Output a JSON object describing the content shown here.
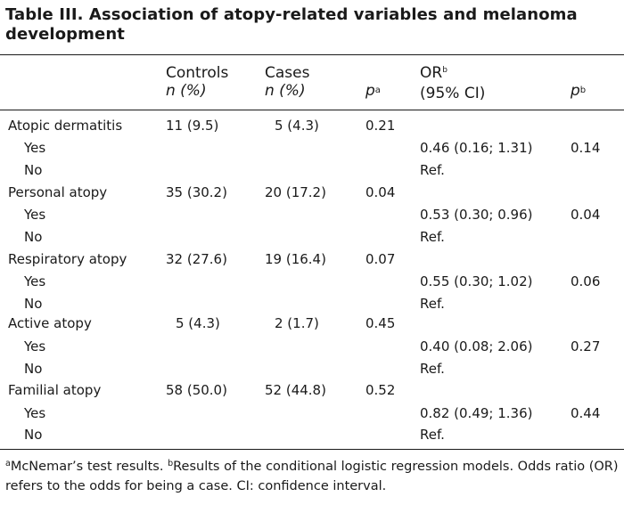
{
  "title": "Table III. Association of atopy-related variables and melanoma development",
  "headers": {
    "controls": "Controls",
    "controls_sub": "n (%)",
    "cases": "Cases",
    "cases_sub": "n (%)",
    "p": "p",
    "p_sup": "a",
    "or": "OR",
    "or_sup": "b",
    "or_sub": "(95% CI)",
    "p2": "p",
    "p2_sup": "b"
  },
  "rows": [
    {
      "label": "Atopic dermatitis",
      "controls": "11 (9.5)",
      "cases": "5 (4.3)",
      "p": "0.21",
      "or": "",
      "p2": ""
    },
    {
      "label": "Yes",
      "controls": "",
      "cases": "",
      "p": "",
      "or": "0.46 (0.16; 1.31)",
      "p2": "0.14"
    },
    {
      "label": "No",
      "controls": "",
      "cases": "",
      "p": "",
      "or": "Ref.",
      "p2": ""
    },
    {
      "label": "Personal atopy",
      "controls": "35 (30.2)",
      "cases": "20 (17.2)",
      "p": "0.04",
      "or": "",
      "p2": ""
    },
    {
      "label": "Yes",
      "controls": "",
      "cases": "",
      "p": "",
      "or": "0.53 (0.30; 0.96)",
      "p2": "0.04"
    },
    {
      "label": "No",
      "controls": "",
      "cases": "",
      "p": "",
      "or": "Ref.",
      "p2": ""
    },
    {
      "label": "Respiratory atopy",
      "controls": "32 (27.6)",
      "cases": "19 (16.4)",
      "p": "0.07",
      "or": "",
      "p2": ""
    },
    {
      "label": "Yes",
      "controls": "",
      "cases": "",
      "p": "",
      "or": "0.55 (0.30; 1.02)",
      "p2": "0.06"
    },
    {
      "label": "No",
      "controls": "",
      "cases": "",
      "p": "",
      "or": "Ref.",
      "p2": ""
    },
    {
      "label": "Active atopy",
      "controls": "5 (4.3)",
      "cases": "2 (1.7)",
      "p": "0.45",
      "or": "",
      "p2": ""
    },
    {
      "label": "Yes",
      "controls": "",
      "cases": "",
      "p": "",
      "or": "0.40 (0.08; 2.06)",
      "p2": "0.27"
    },
    {
      "label": "No",
      "controls": "",
      "cases": "",
      "p": "",
      "or": "Ref.",
      "p2": ""
    },
    {
      "label": "Familial atopy",
      "controls": "58 (50.0)",
      "cases": "52 (44.8)",
      "p": "0.52",
      "or": "",
      "p2": ""
    },
    {
      "label": "Yes",
      "controls": "",
      "cases": "",
      "p": "",
      "or": "0.82 (0.49; 1.36)",
      "p2": "0.44"
    },
    {
      "label": "No",
      "controls": "",
      "cases": "",
      "p": "",
      "or": "Ref.",
      "p2": ""
    }
  ],
  "footer": {
    "sup_a": "a",
    "text_a": "McNemar’s test results. ",
    "sup_b": "b",
    "text_b": "Results of the conditional logistic regression models. Odds ratio (OR) refers to the odds for being a case. CI: confidence interval."
  }
}
